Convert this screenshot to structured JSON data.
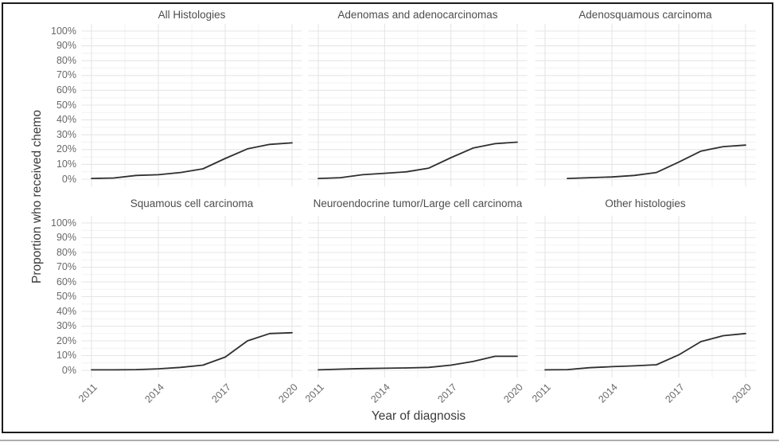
{
  "chart_data": {
    "type": "line",
    "layout": "faceted small multiples, 2 rows x 3 columns, shared axes",
    "title": "",
    "xlabel": "Year of diagnosis",
    "ylabel": "Proportion who received chemo",
    "x": [
      2011,
      2012,
      2013,
      2014,
      2015,
      2016,
      2017,
      2018,
      2019,
      2020
    ],
    "x_tick_labels": [
      "2011",
      "2014",
      "2017",
      "2020"
    ],
    "y_tick_labels": [
      "100%",
      "90%",
      "80%",
      "70%",
      "60%",
      "50%",
      "40%",
      "30%",
      "20%",
      "10%",
      "0%"
    ],
    "ylim": [
      0,
      100
    ],
    "grid": "major gridlines at each 10% and at 2011/2014/2017/2020, minor gridlines midway, light gray on white, no panel border",
    "facets": [
      {
        "title": "All Histologies",
        "values": [
          0.5,
          0.8,
          2.5,
          3,
          4.5,
          7,
          14,
          20.5,
          23.5,
          24.5
        ]
      },
      {
        "title": "Adenomas and adenocarcinomas",
        "values": [
          0.5,
          1,
          3,
          4,
          5,
          7.5,
          14.5,
          21,
          24,
          25
        ]
      },
      {
        "title": "Adenosquamous carcinoma",
        "values": [
          null,
          0.5,
          1,
          1.5,
          2.5,
          4.5,
          11.5,
          19,
          22,
          23
        ]
      },
      {
        "title": "Squamous cell carcinoma",
        "values": [
          0.3,
          0.3,
          0.5,
          1,
          2,
          3.5,
          9,
          20,
          25,
          25.5
        ]
      },
      {
        "title": "Neuroendocrine tumor/Large cell carcinoma",
        "values": [
          0.3,
          0.8,
          1.2,
          1.4,
          1.6,
          2,
          3.5,
          6,
          9.5,
          9.5
        ]
      },
      {
        "title": "Other histologies",
        "values": [
          0.3,
          0.5,
          1.8,
          2.5,
          3,
          3.8,
          10.5,
          19.5,
          23.5,
          25
        ]
      }
    ],
    "colors": {
      "line": "#2f2f2f",
      "grid_major": "#e5e5e5",
      "grid_minor": "#f2f2f2",
      "facet_title_text": "#4d4d4d",
      "tick_text": "#696969",
      "axis_title_text": "#3a3a3a",
      "border": "#1c1c1c",
      "background": "#ffffff"
    }
  }
}
